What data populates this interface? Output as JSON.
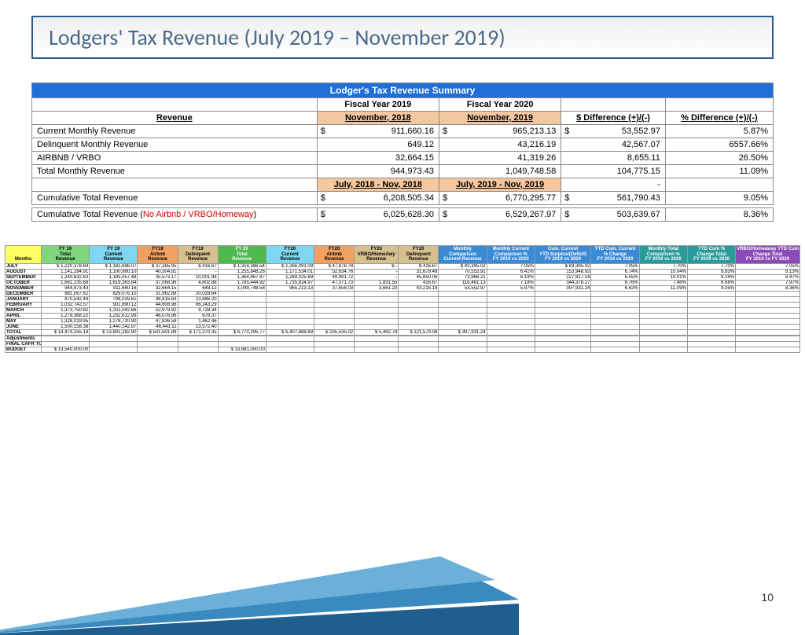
{
  "title": "Lodgers' Tax Revenue (July 2019 – November 2019)",
  "page_number": "10",
  "summary": {
    "banner": "Lodger's Tax Revenue Summary",
    "fy19_label": "Fiscal Year 2019",
    "fy20_label": "Fiscal Year 2020",
    "revenue_label": "Revenue",
    "period19_label": "November, 2018",
    "period20_label": "November, 2019",
    "diff_label": "$ Difference (+)/(-)",
    "pct_label": "% Difference (+)/(-)",
    "rows1": [
      {
        "label": "Current Monthly Revenue",
        "v1": "911,660.16",
        "v2": "965,213.13",
        "d": "53,552.97",
        "p": "5.87%",
        "dollar": true
      },
      {
        "label": "Delinquent Monthly Revenue",
        "v1": "649.12",
        "v2": "43,216.19",
        "d": "42,567.07",
        "p": "6557.66%",
        "dollar": false
      },
      {
        "label": "AIRBNB / VRBO",
        "v1": "32,664.15",
        "v2": "41,319.26",
        "d": "8,655.11",
        "p": "26.50%",
        "dollar": false
      },
      {
        "label": "Total Monthly Revenue",
        "v1": "944,973.43",
        "v2": "1,049,748.58",
        "d": "104,775.15",
        "p": "11.09%",
        "dollar": false
      }
    ],
    "range19_label": "July, 2018 - Nov, 2018",
    "range20_label": "July, 2019 - Nov, 2019",
    "cum_label": "Cumulative Total Revenue",
    "cum_v1": "6,208,505.34",
    "cum_v2": "6,770,295.77",
    "cum_d": "561,790.43",
    "cum_p": "9.05%",
    "cum2_label_a": "Cumulative Total Revenue (",
    "cum2_label_red": "No Airbnb / VRBO/Homeway",
    "cum2_label_b": ")",
    "cum2_v1": "6,025,628.30",
    "cum2_v2": "6,529,267.97",
    "cum2_d": "503,639.67",
    "cum2_p": "8.36%"
  },
  "detail": {
    "headers": [
      {
        "cls": "hdr-yellow",
        "lines": [
          "",
          "",
          "Months"
        ]
      },
      {
        "cls": "hdr-green",
        "lines": [
          "FY 19",
          "Total",
          "Revenue"
        ]
      },
      {
        "cls": "hdr-cyan",
        "lines": [
          "FY 19",
          "Current",
          "Revenue"
        ]
      },
      {
        "cls": "hdr-orange",
        "lines": [
          "FY19",
          "Airbnb",
          "Revenue"
        ]
      },
      {
        "cls": "hdr-tan",
        "lines": [
          "FY19",
          "Delinquent",
          "Revenue"
        ]
      },
      {
        "cls": "hdr-green2",
        "lines": [
          "FY 20",
          "Total",
          "Revenue"
        ]
      },
      {
        "cls": "hdr-cyan",
        "lines": [
          "FY20",
          "Current",
          "Revenue"
        ]
      },
      {
        "cls": "hdr-orange",
        "lines": [
          "FY20",
          "Airbnb",
          "Revenue"
        ]
      },
      {
        "cls": "hdr-tan",
        "lines": [
          "FY20",
          "VRBO/HomeAwy",
          "Revenue"
        ]
      },
      {
        "cls": "hdr-tan",
        "lines": [
          "FY20",
          "Delinquent",
          "Revenue"
        ]
      },
      {
        "cls": "hdr-blue",
        "lines": [
          "Monthly",
          "Comparison",
          "Current Revenue"
        ]
      },
      {
        "cls": "hdr-blue",
        "lines": [
          "Monthly Current",
          "Comparison %",
          "FY 2019 vs 2020"
        ]
      },
      {
        "cls": "hdr-blue",
        "lines": [
          "Cum. Current",
          "YTD Surplus/(Deficit)",
          "FY 2019 vs 2020"
        ]
      },
      {
        "cls": "hdr-blue",
        "lines": [
          "YTD Cum. Current",
          "% Change",
          "FY 2019 vs 2020"
        ]
      },
      {
        "cls": "hdr-teal",
        "lines": [
          "Monthly Total",
          "Comparison %",
          "FY 2019 vs 2020"
        ]
      },
      {
        "cls": "hdr-teal",
        "lines": [
          "YTD Cum %",
          "Change Total",
          "FY 2019 vs 2020"
        ]
      },
      {
        "cls": "hdr-purple",
        "lines": [
          "VRBO/Homeaway YTD Cum %",
          "Change Total",
          "FY 2019 vs FY 2020"
        ]
      }
    ],
    "rows": [
      [
        "JULY",
        "$  1,220,378.69",
        "$  1,182,696.07",
        "$   37,265.95",
        "$      416.67",
        "$  1,314,386.54",
        "$ 1,266,091.09",
        "$   47,878.78",
        "$          -",
        "$      416.67",
        "$   83,395.02",
        "7.05%",
        "$   83,395.02",
        "7.05%",
        "7.70%",
        "7.70%",
        "7.05%"
      ],
      [
        "AUGUST",
        "1,141,284.91",
        "1,100,980.10",
        "40,304.81",
        "-",
        "1,255,848.26",
        "1,171,534.01",
        "52,634.76",
        "-",
        "31,679.49",
        "70,553.91",
        "6.41%",
        "153,948.93",
        "6.74%",
        "10.04%",
        "8.83%",
        "8.13%"
      ],
      [
        "SEPTEMBER",
        "1,240,632.63",
        "1,195,057.48",
        "35,573.17",
        "10,001.98",
        "1,364,867.47",
        "1,269,025.69",
        "49,991.72",
        "-",
        "45,850.06",
        "73,968.21",
        "6.19%",
        "227,917.14",
        "6.55%",
        "10.01%",
        "9.24%",
        "8.47%"
      ],
      [
        "OCTOBER",
        "1,661,235.68",
        "1,619,363.84",
        "37,068.96",
        "4,802.88",
        "1,785,444.92",
        "1,735,824.97",
        "47,371.73",
        "1,831.55",
        "416.67",
        "116,461.13",
        "7.19%",
        "344,378.27",
        "6.76%",
        "7.48%",
        "8.68%",
        "7.97%"
      ],
      [
        "NOVEMBER",
        "944,973.43",
        "911,660.16",
        "32,664.15",
        "649.12",
        "1,049,748.58",
        "965,213.13",
        "37,658.03",
        "3,661.23",
        "43,216.19",
        "53,552.97",
        "5.87%",
        "397,931.24",
        "6.62%",
        "11.09%",
        "9.05%",
        "8.36%"
      ],
      [
        "DECEMBER",
        "881,067.62",
        "829,076.10",
        "31,962.88",
        "20,028.64",
        "",
        "",
        "",
        "",
        "",
        "",
        "",
        "",
        "",
        "",
        "",
        ""
      ],
      [
        "JANUARY",
        "870,542.44",
        "798,039.61",
        "48,816.63",
        "23,686.20",
        "",
        "",
        "",
        "",
        "",
        "",
        "",
        "",
        "",
        "",
        "",
        ""
      ],
      [
        "FEBRUARY",
        "1,032,742.57",
        "901,890.12",
        "44,608.96",
        "86,243.29",
        "",
        "",
        "",
        "",
        "",
        "",
        "",
        "",
        "",
        "",
        "",
        ""
      ],
      [
        "MARCH",
        "1,373,750.82",
        "1,311,042.66",
        "52,979.82",
        "9,728.34",
        "",
        "",
        "",
        "",
        "",
        "",
        "",
        "",
        "",
        "",
        "",
        ""
      ],
      [
        "APRIL",
        "1,279,368.22",
        "1,232,612.99",
        "46,076.86",
        "678.37",
        "",
        "",
        "",
        "",
        "",
        "",
        "",
        "",
        "",
        "",
        "",
        ""
      ],
      [
        "MAY",
        "1,328,019.95",
        "1,278,720.90",
        "47,836.59",
        "1,462.46",
        "",
        "",
        "",
        "",
        "",
        "",
        "",
        "",
        "",
        "",
        "",
        ""
      ],
      [
        "JUNE",
        "1,500,158.38",
        "1,440,142.87",
        "46,443.11",
        "13,572.40",
        "",
        "",
        "",
        "",
        "",
        "",
        "",
        "",
        "",
        "",
        "",
        ""
      ],
      [
        "TOTAL",
        "$ 14,474,155.14",
        "$ 13,801,282.90",
        "$  501,601.89",
        "$  171,270.35",
        "$  6,770,295.77",
        "$ 6,407,688.89",
        "$  235,535.02",
        "$    5,492.78",
        "$ 121,579.08",
        "$  397,931.24",
        "",
        "",
        "",
        "",
        "",
        ""
      ],
      [
        "",
        "",
        "",
        "",
        "",
        "",
        "",
        "",
        "",
        "",
        "",
        "",
        "",
        "",
        "",
        "",
        ""
      ],
      [
        "Adjustments",
        "",
        "",
        "",
        "",
        "",
        "",
        "",
        "",
        "",
        "",
        "",
        "",
        "",
        "",
        "",
        ""
      ],
      [
        "FINAL CAFR TOTAL",
        "",
        "",
        "",
        "",
        "",
        "",
        "",
        "",
        "",
        "",
        "",
        "",
        "",
        "",
        "",
        ""
      ],
      [
        "BUDGET",
        "$ 13,540,000.00",
        "",
        "",
        "",
        "$ 13,681,000.00",
        "",
        "",
        "",
        "",
        "",
        "",
        "",
        "",
        "",
        "",
        ""
      ]
    ]
  },
  "colors": {
    "title_border": "#2a5a8a",
    "banner_bg": "#1f6fd6",
    "peach": "#f4c7a0"
  }
}
